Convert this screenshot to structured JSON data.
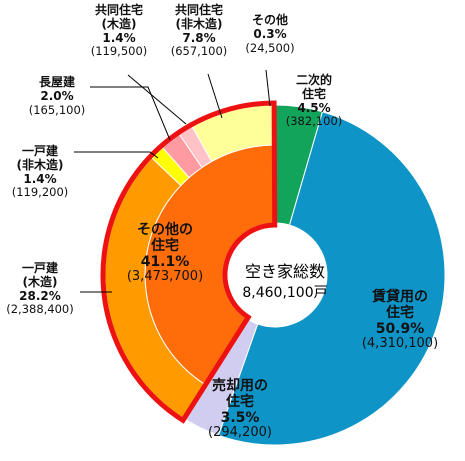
{
  "chart_data": {
    "type": "pie",
    "center_title": "空き家総数",
    "center_value": "8,460,100戸",
    "slices": [
      {
        "key": "nijiteki",
        "label": "二次的住宅",
        "percent": 4.5,
        "value": 382100,
        "value_text": "(382,100)",
        "color": "#12a45a"
      },
      {
        "key": "chintai",
        "label": "賃貸用の住宅",
        "percent": 50.9,
        "value": 4310100,
        "value_text": "(4,310,100)",
        "color": "#0f94c8"
      },
      {
        "key": "baikyaku",
        "label": "売却用の住宅",
        "percent": 3.5,
        "value": 294200,
        "value_text": "(294,200)",
        "color": "#d1cdf0"
      },
      {
        "key": "sonota",
        "label": "その他の住宅",
        "percent": 41.1,
        "value": 3473700,
        "value_text": "(3,473,700)",
        "color": "#ff6d0a",
        "breakdown": [
          {
            "key": "ikko_mokuzo",
            "label": "一戸建(木造)",
            "percent": 28.2,
            "value": 2388400,
            "value_text": "(2,388,400)",
            "color": "#ff9a00"
          },
          {
            "key": "ikko_himokuzo",
            "label": "一戸建(非木造)",
            "percent": 1.4,
            "value": 119200,
            "value_text": "(119,200)",
            "color": "#ffff00"
          },
          {
            "key": "nagaya",
            "label": "長屋建",
            "percent": 2.0,
            "value": 165100,
            "value_text": "(165,100)",
            "color": "#ff9aa0"
          },
          {
            "key": "kyodo_mokuzo",
            "label": "共同住宅(木造)",
            "percent": 1.4,
            "value": 119500,
            "value_text": "(119,500)",
            "color": "#ffc2c6"
          },
          {
            "key": "kyodo_himokuzo",
            "label": "共同住宅(非木造)",
            "percent": 7.8,
            "value": 657100,
            "value_text": "(657,100)",
            "color": "#ffff99"
          },
          {
            "key": "sonota2",
            "label": "その他",
            "percent": 0.3,
            "value": 24500,
            "value_text": "(24,500)",
            "color": "#fff6cc"
          }
        ]
      }
    ],
    "outline_color": "#ee1111"
  },
  "labels": {
    "nijiteki": {
      "l1": "二次的",
      "l2": "住宅",
      "p": "4.5%",
      "v": "(382,100)"
    },
    "chintai": {
      "l1": "賃貸用の",
      "l2": "住宅",
      "p": "50.9%",
      "v": "(4,310,100)"
    },
    "baikyaku": {
      "l1": "売却用の",
      "l2": "住宅",
      "p": "3.5%",
      "v": "(294,200)"
    },
    "sonota": {
      "l1": "その他の",
      "l2": "住宅",
      "p": "41.1%",
      "v": "(3,473,700)"
    },
    "ikko_mokuzo": {
      "l1": "一戸建",
      "l2": "(木造)",
      "p": "28.2%",
      "v": "(2,388,400)"
    },
    "ikko_himokuzo": {
      "l1": "一戸建",
      "l2": "(非木造)",
      "p": "1.4%",
      "v": "(119,200)"
    },
    "nagaya": {
      "l1": "長屋建",
      "p": "2.0%",
      "v": "(165,100)"
    },
    "kyodo_mokuzo": {
      "l1": "共同住宅",
      "l2": "(木造)",
      "p": "1.4%",
      "v": "(119,500)"
    },
    "kyodo_himokuzo": {
      "l1": "共同住宅",
      "l2": "(非木造)",
      "p": "7.8%",
      "v": "(657,100)"
    },
    "sonota2": {
      "l1": "その他",
      "p": "0.3%",
      "v": "(24,500)"
    }
  }
}
